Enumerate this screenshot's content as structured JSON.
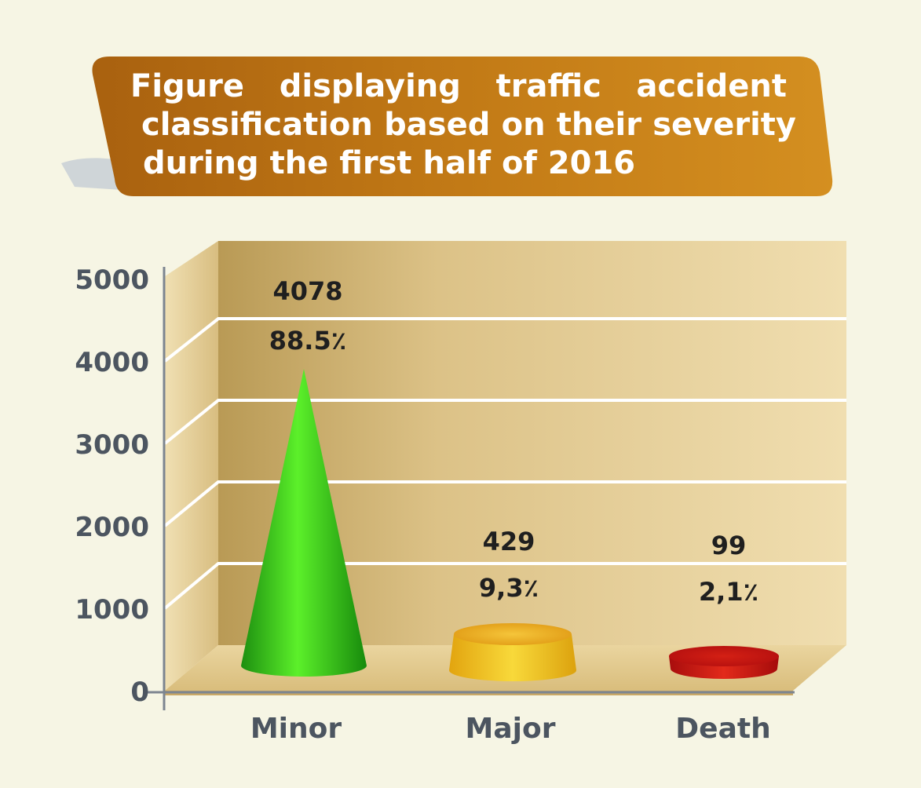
{
  "chart_data": {
    "type": "bar",
    "title_lines": [
      "Figure displaying traffic accident",
      "classification based on their severity",
      "during the first half of 2016"
    ],
    "categories": [
      "Minor",
      "Major",
      "Death"
    ],
    "values": [
      4078,
      429,
      99
    ],
    "value_labels": [
      "4078",
      "429",
      "99"
    ],
    "percent_labels": [
      "88.5٪",
      "9,3٪",
      "2,1٪"
    ],
    "yticks": [
      "0",
      "1000",
      "2000",
      "3000",
      "4000",
      "5000"
    ],
    "ylim": [
      0,
      5000
    ],
    "grid": true,
    "colors": {
      "Minor": "#2fbf1c",
      "Major": "#e8b412",
      "Death": "#cc1313",
      "banner": "#b96f13",
      "axis_text": "#4c5560",
      "wall": "#e6cf94"
    }
  }
}
